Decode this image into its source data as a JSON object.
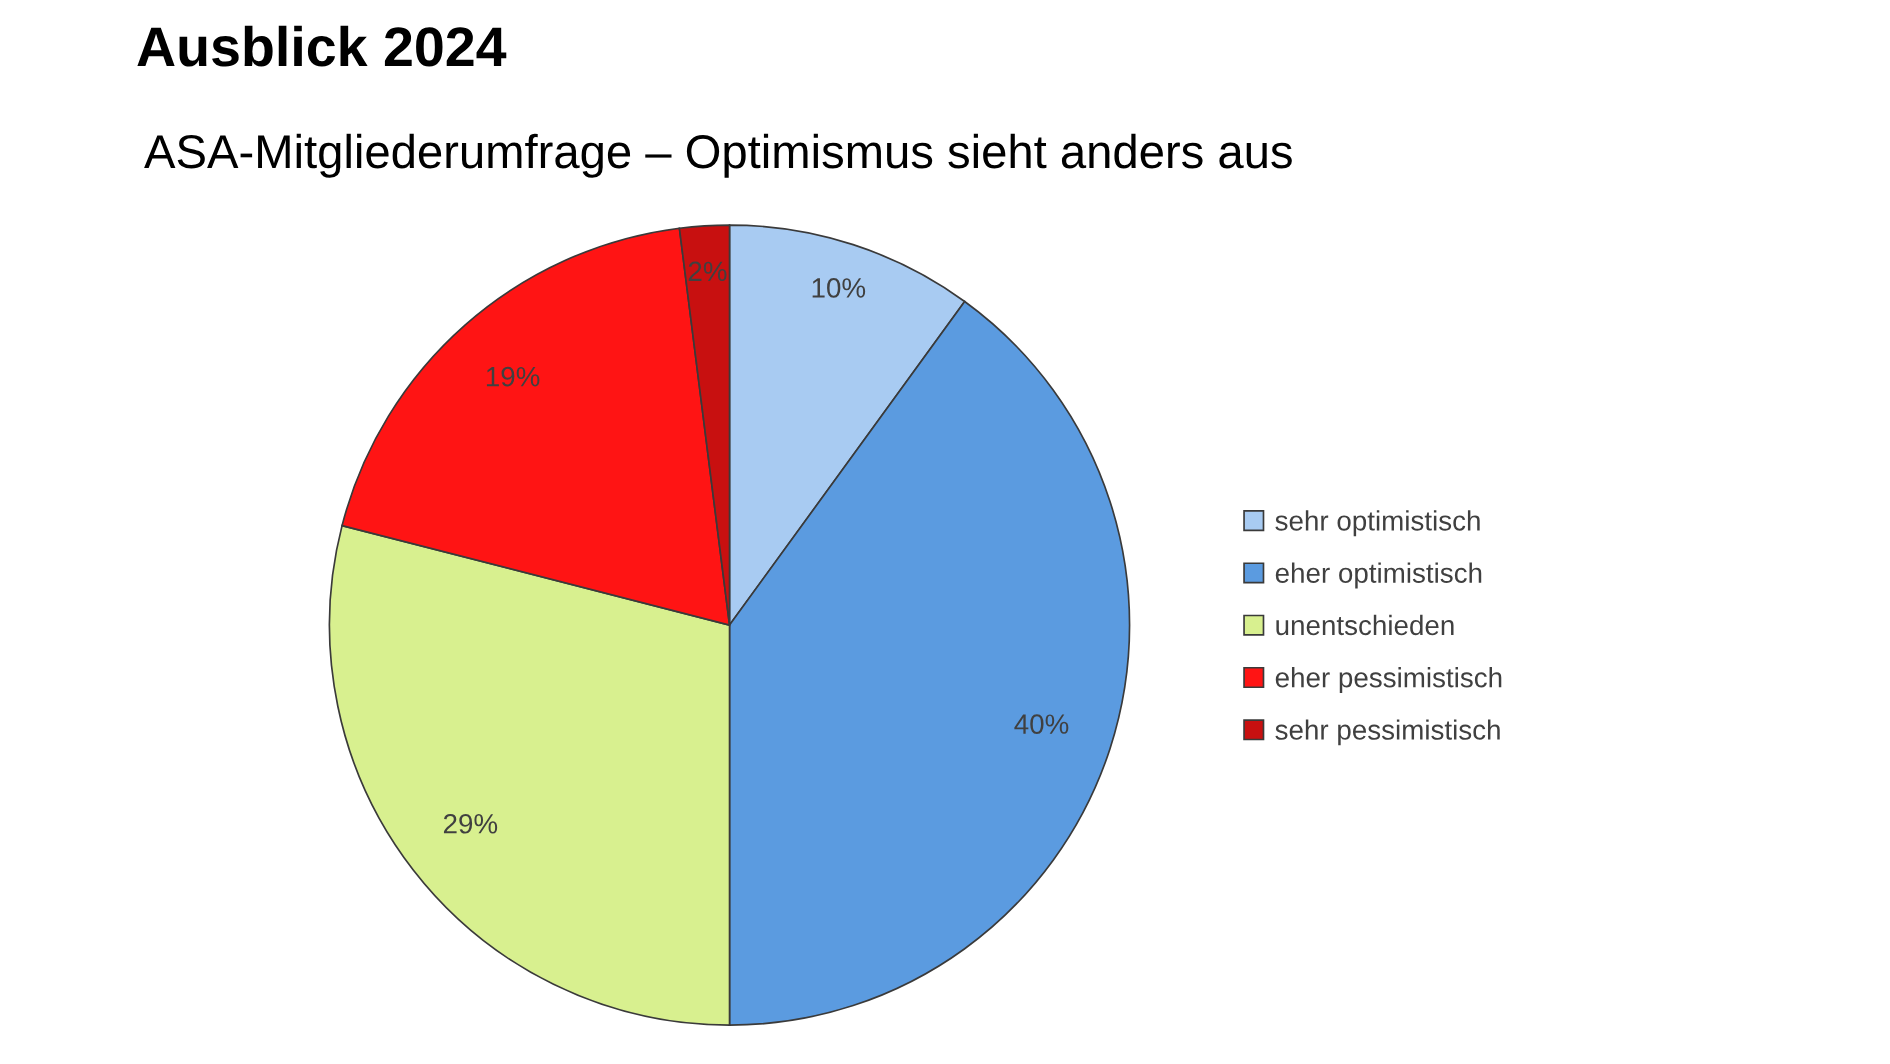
{
  "chart_data": {
    "type": "pie",
    "title": "Ausblick 2024",
    "subtitle": "ASA-Mitgliederumfrage – Optimismus sieht anders aus",
    "categories": [
      "sehr optimistisch",
      "eher optimistisch",
      "unentschieden",
      "eher pessimistisch",
      "sehr pessimistisch"
    ],
    "values": [
      10,
      40,
      29,
      19,
      2
    ],
    "colors": [
      "#a8cbf2",
      "#5b9be0",
      "#d8f08f",
      "#ff1414",
      "#c81010"
    ],
    "value_labels": [
      "10%",
      "40%",
      "29%",
      "19%",
      "2%"
    ],
    "legend": "right"
  }
}
